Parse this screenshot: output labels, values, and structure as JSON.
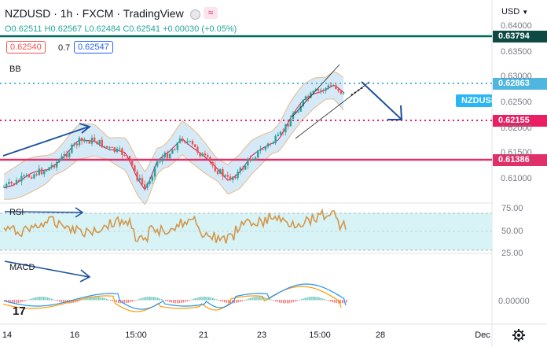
{
  "header": {
    "title": "NZDUSD · 1h · FXCM · TradingView",
    "status_icon": "circle-icon",
    "alert_icon": "wave-icon"
  },
  "ohlc": {
    "open": "O0.62511",
    "high": "H0.62567",
    "low": "L0.62484",
    "close": "C0.62541",
    "change": "+0.00030 (+0.05%)"
  },
  "order_panel": {
    "sell": "0.62540",
    "spread": "0.7",
    "buy": "0.62547"
  },
  "indicators": {
    "bb": "BB",
    "rsi": "RSI",
    "macd": "MACD"
  },
  "axis": {
    "currency": "USD",
    "price_ticks": [
      "0.64000",
      "0.63500",
      "0.63000",
      "0.62500",
      "0.62000",
      "0.61500",
      "0.61000"
    ],
    "rsi_ticks": [
      "75.00",
      "50.00",
      "25.00"
    ],
    "macd_tick": "0.00000",
    "time_ticks": [
      "14",
      "16",
      "15:00",
      "21",
      "23",
      "15:00",
      "28",
      "Dec"
    ]
  },
  "price_tags": {
    "level_top": "0.63794",
    "level_upper": "0.62863",
    "symbol": "NZDUSD",
    "level_mid": "0.62155",
    "level_low": "0.61386"
  },
  "colors": {
    "green_line": "#00695c",
    "blue_dotted": "#4fb6e0",
    "pink_dotted": "#e91e63",
    "pink_solid": "#e0306a",
    "bb_fill": "#cfe5f5",
    "bull": "#26a69a",
    "bear": "#ef5350",
    "rsi_line": "#d4964a",
    "rsi_band": "#d7f3f5",
    "arrow": "#1b4f9c",
    "macd_blue": "#2196f3",
    "macd_orange": "#ff9800"
  },
  "footer": {
    "settings_icon": "gear-icon",
    "logo": "TV"
  }
}
